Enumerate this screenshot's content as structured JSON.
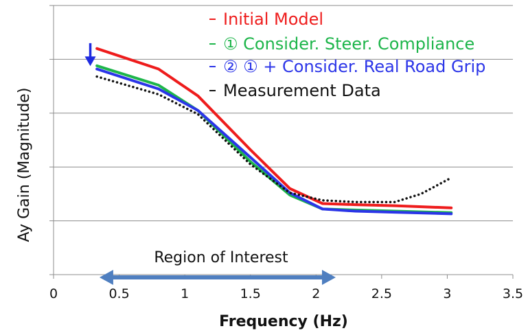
{
  "chart_data": {
    "type": "line",
    "title": "",
    "xlabel": "Frequency (Hz)",
    "ylabel": "Ay Gain (Magnitude)",
    "xlim": [
      0,
      3.5
    ],
    "ylim": [
      0,
      5
    ],
    "xticks": [
      "0",
      "0.5",
      "1",
      "1.5",
      "2",
      "2.5",
      "3",
      "3.5"
    ],
    "yticks": [],
    "grid": "horizontal",
    "legend_position": "top-right",
    "series": [
      {
        "name": "Initial Model",
        "color": "#ee1c1c",
        "style": "solid",
        "points": [
          [
            0.33,
            4.2
          ],
          [
            0.8,
            3.82
          ],
          [
            1.1,
            3.32
          ],
          [
            1.5,
            2.32
          ],
          [
            1.8,
            1.6
          ],
          [
            2.05,
            1.32
          ],
          [
            2.3,
            1.3
          ],
          [
            2.6,
            1.28
          ],
          [
            3.03,
            1.24
          ]
        ]
      },
      {
        "name": "① Consider. Steer. Compliance",
        "color": "#1db54a",
        "style": "solid",
        "points": [
          [
            0.33,
            3.88
          ],
          [
            0.8,
            3.52
          ],
          [
            1.1,
            3.05
          ],
          [
            1.5,
            2.1
          ],
          [
            1.8,
            1.48
          ],
          [
            2.05,
            1.22
          ],
          [
            2.3,
            1.2
          ],
          [
            2.6,
            1.18
          ],
          [
            3.03,
            1.15
          ]
        ]
      },
      {
        "name": "② ① + Consider. Real Road Grip",
        "color": "#2b35e8",
        "style": "solid",
        "points": [
          [
            0.33,
            3.82
          ],
          [
            0.8,
            3.45
          ],
          [
            1.1,
            3.05
          ],
          [
            1.5,
            2.18
          ],
          [
            1.8,
            1.52
          ],
          [
            2.05,
            1.22
          ],
          [
            2.3,
            1.18
          ],
          [
            2.6,
            1.16
          ],
          [
            3.03,
            1.13
          ]
        ]
      },
      {
        "name": "Measurement Data",
        "color": "#111111",
        "style": "dotted",
        "points": [
          [
            0.33,
            3.68
          ],
          [
            0.8,
            3.35
          ],
          [
            1.1,
            2.98
          ],
          [
            1.5,
            2.05
          ],
          [
            1.8,
            1.52
          ],
          [
            2.05,
            1.38
          ],
          [
            2.3,
            1.35
          ],
          [
            2.6,
            1.35
          ],
          [
            2.8,
            1.5
          ],
          [
            3.03,
            1.8
          ]
        ]
      }
    ],
    "annotations": [
      {
        "text": "Region of Interest",
        "x_start": 0.35,
        "x_end": 2.15,
        "color": "#4f7fc0"
      },
      {
        "text": "",
        "kind": "down-arrow",
        "x": 0.28,
        "y_from": 4.3,
        "y_to": 3.9,
        "color": "#1f2be0"
      }
    ]
  }
}
